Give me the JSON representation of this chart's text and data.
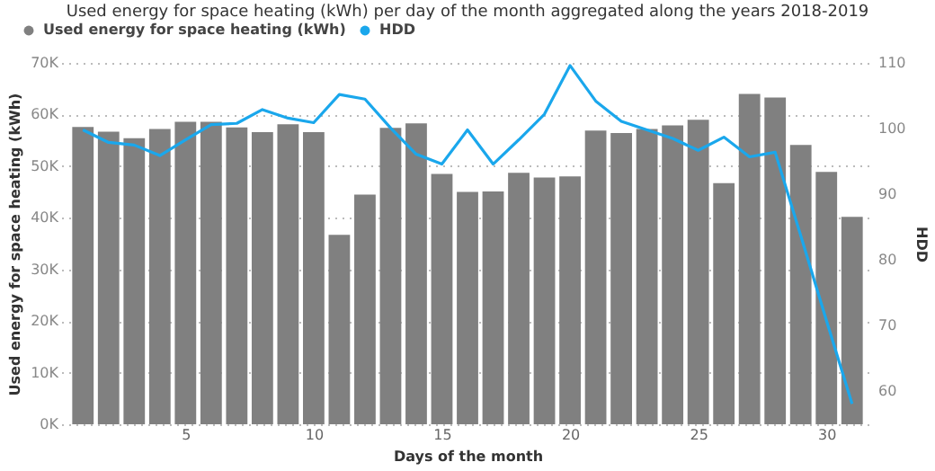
{
  "chart_data": {
    "type": "bar",
    "title": "Used energy for space heating (kWh) per day of the month aggregated along the years 2018-2019",
    "x": [
      1,
      2,
      3,
      4,
      5,
      6,
      7,
      8,
      9,
      10,
      11,
      12,
      13,
      14,
      15,
      16,
      17,
      18,
      19,
      20,
      21,
      22,
      23,
      24,
      25,
      26,
      27,
      28,
      29,
      30,
      31
    ],
    "xlabel": "Days of the month",
    "ylabel": "Used energy for space heating (kWh)",
    "y2label": "HDD",
    "xlim": [
      0.5,
      31.5
    ],
    "xticks": [
      5,
      10,
      15,
      20,
      25,
      30
    ],
    "ylim": [
      0,
      70000
    ],
    "yticks": [
      {
        "value": 0,
        "label": "0K"
      },
      {
        "value": 10000,
        "label": "10K"
      },
      {
        "value": 20000,
        "label": "20K"
      },
      {
        "value": 30000,
        "label": "30K"
      },
      {
        "value": 40000,
        "label": "40K"
      },
      {
        "value": 50000,
        "label": "50K"
      },
      {
        "value": 60000,
        "label": "60K"
      },
      {
        "value": 70000,
        "label": "70K"
      }
    ],
    "y2lim": [
      55,
      110
    ],
    "y2ticks": [
      60,
      70,
      80,
      90,
      100,
      110
    ],
    "series": [
      {
        "name": "Used energy for space heating (kWh)",
        "color": "#808080",
        "values": [
          57600,
          56700,
          55400,
          57200,
          58600,
          58600,
          57500,
          56600,
          58100,
          56600,
          36700,
          44500,
          57400,
          58300,
          48500,
          45000,
          45100,
          48700,
          47800,
          48000,
          56900,
          56400,
          57200,
          57900,
          59000,
          46700,
          64000,
          63300,
          54100,
          48900,
          40200
        ]
      },
      {
        "name": "HDD",
        "type": "line",
        "axis": "y2",
        "color": "#1aa7ec",
        "values": [
          99.8,
          97.9,
          97.5,
          95.9,
          98.3,
          100.6,
          100.8,
          102.9,
          101.6,
          100.9,
          105.2,
          104.5,
          100.1,
          96.1,
          94.6,
          99.8,
          94.6,
          98.3,
          102.2,
          109.6,
          104.2,
          101.1,
          99.8,
          98.5,
          96.7,
          98.7,
          95.7,
          96.4,
          83.7,
          70.8,
          58.1
        ]
      }
    ],
    "grid": "y",
    "legend": "top left"
  }
}
